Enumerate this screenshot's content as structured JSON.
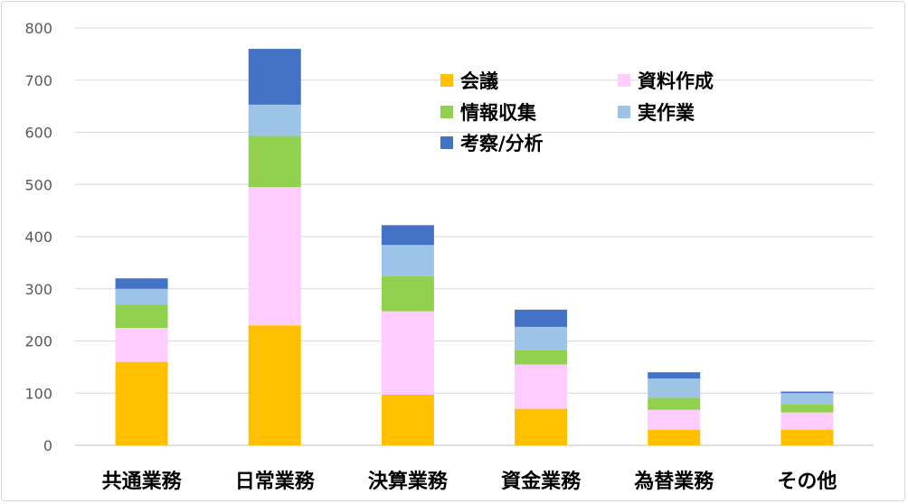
{
  "chart_data": {
    "type": "bar",
    "stacked": true,
    "categories": [
      "共通業務",
      "日常業務",
      "決算業務",
      "資金業務",
      "為替業務",
      "その他"
    ],
    "series": [
      {
        "name": "会議",
        "color": "#FFC000",
        "values": [
          160,
          230,
          97,
          70,
          30,
          30
        ]
      },
      {
        "name": "資料作成",
        "color": "#FFCCFF",
        "values": [
          65,
          265,
          160,
          85,
          38,
          33
        ]
      },
      {
        "name": "情報収集",
        "color": "#92D050",
        "values": [
          45,
          98,
          67,
          27,
          23,
          15
        ]
      },
      {
        "name": "実作業",
        "color": "#9DC3E6",
        "values": [
          30,
          60,
          60,
          45,
          37,
          22
        ]
      },
      {
        "name": "考察/分析",
        "color": "#4472C4",
        "values": [
          20,
          107,
          38,
          33,
          12,
          3
        ]
      }
    ],
    "title": "",
    "xlabel": "",
    "ylabel": "",
    "ylim": [
      0,
      800
    ],
    "yticks": [
      0,
      100,
      200,
      300,
      400,
      500,
      600,
      700,
      800
    ],
    "grid": true,
    "legend_position": "top-right"
  }
}
